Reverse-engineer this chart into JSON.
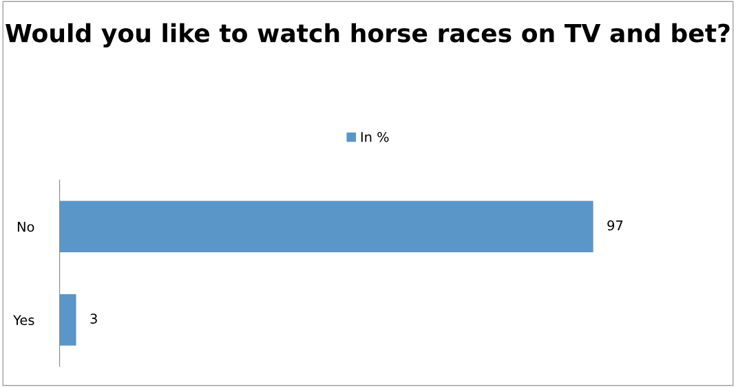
{
  "chart_data": {
    "type": "bar",
    "orientation": "horizontal",
    "title": "Would you like to watch horse races on TV and bet?",
    "categories": [
      "No",
      "Yes"
    ],
    "series": [
      {
        "name": "In %",
        "color": "#5b96c9",
        "values": [
          97,
          3
        ]
      }
    ],
    "data_labels": true,
    "legend": "top",
    "grid": false
  }
}
